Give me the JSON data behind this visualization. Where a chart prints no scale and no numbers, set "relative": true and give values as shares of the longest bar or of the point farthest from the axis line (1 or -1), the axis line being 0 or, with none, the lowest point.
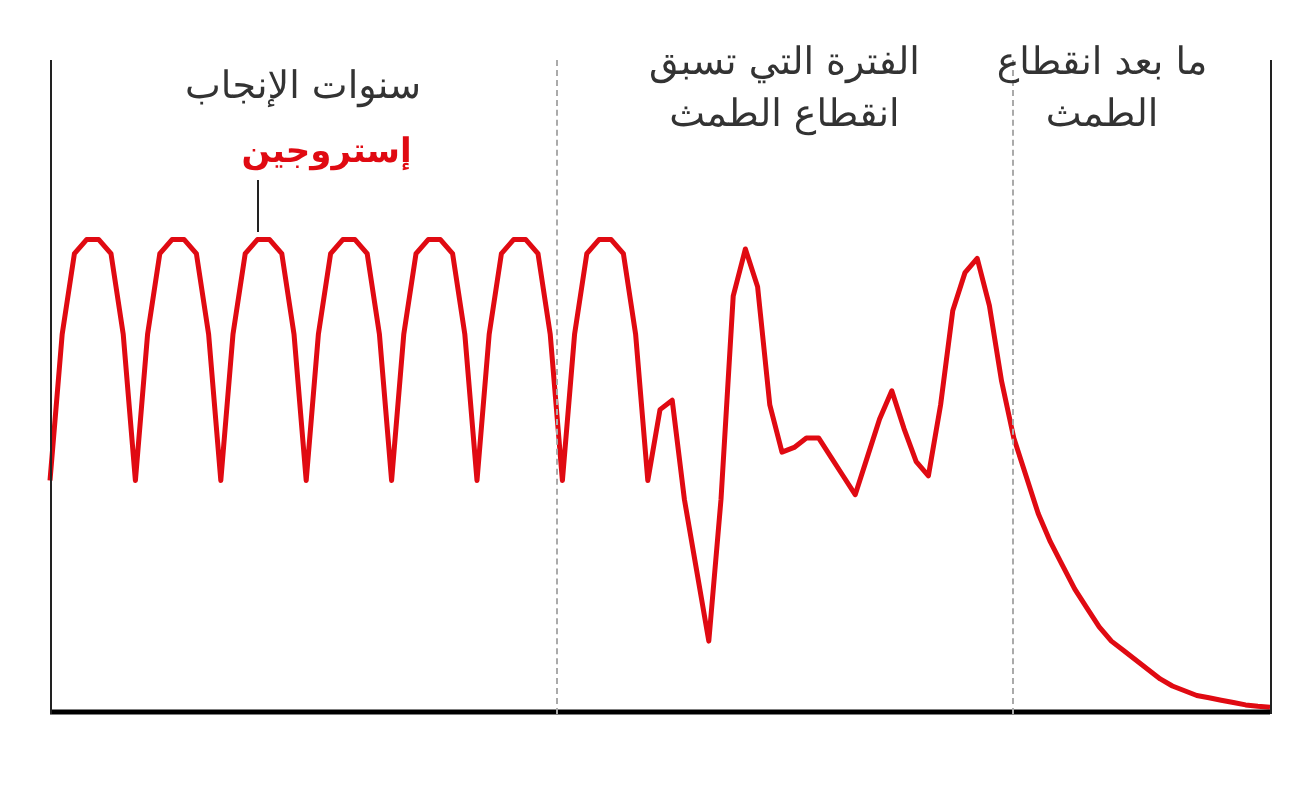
{
  "chart_data": {
    "type": "line",
    "relative": true,
    "marker": "none",
    "line_style": "solid",
    "categories": [
      null,
      null,
      null,
      null,
      null,
      null,
      null,
      null,
      null,
      null,
      null,
      null,
      null,
      null,
      null,
      null,
      null,
      null,
      null,
      null,
      null,
      null,
      null,
      null,
      null,
      null,
      null,
      null,
      null,
      null,
      null,
      null,
      null,
      null,
      null,
      null,
      null,
      null,
      null,
      null,
      null,
      null,
      null,
      null,
      null,
      null,
      null,
      null,
      null,
      null,
      null,
      null,
      null,
      null,
      null,
      null,
      null,
      null,
      null,
      null,
      null,
      null,
      null,
      null,
      null,
      null,
      null,
      null,
      null,
      null,
      null,
      null,
      null,
      null,
      null,
      null,
      null,
      null,
      null,
      null,
      null,
      null,
      null,
      null,
      null,
      null,
      null,
      null,
      null,
      null,
      null,
      null,
      null,
      null,
      null,
      null,
      null,
      null,
      null,
      null,
      null
    ],
    "series": [
      {
        "name": "إستروجين",
        "color": "#e00a12",
        "values": [
          0.49,
          0.8,
          0.97,
          1,
          1,
          0.97,
          0.8,
          0.49,
          0.8,
          0.97,
          1,
          1,
          0.97,
          0.8,
          0.49,
          0.8,
          0.97,
          1,
          1,
          0.97,
          0.8,
          0.49,
          0.8,
          0.97,
          1,
          1,
          0.97,
          0.8,
          0.49,
          0.8,
          0.97,
          1,
          1,
          0.97,
          0.8,
          0.49,
          0.8,
          0.97,
          1,
          1,
          0.97,
          0.8,
          0.49,
          0.8,
          0.97,
          1,
          1,
          0.97,
          0.8,
          0.49,
          0.64,
          0.66,
          0.45,
          0.3,
          0.15,
          0.45,
          0.88,
          0.98,
          0.9,
          0.65,
          0.55,
          0.56,
          0.58,
          0.58,
          0.54,
          0.5,
          0.46,
          0.54,
          0.62,
          0.68,
          0.6,
          0.53,
          0.5,
          0.65,
          0.85,
          0.93,
          0.96,
          0.86,
          0.7,
          0.58,
          0.5,
          0.42,
          0.36,
          0.31,
          0.26,
          0.22,
          0.18,
          0.15,
          0.13,
          0.11,
          0.09,
          0.07,
          0.055,
          0.045,
          0.035,
          0.03,
          0.025,
          0.02,
          0.015,
          0.012,
          0.01
        ]
      }
    ],
    "annotations": [
      "سنوات الإنجاب",
      "الفترة التي تسبق\nانقطاع الطمث",
      "ما بعد انقطاع\nالطمث"
    ]
  }
}
